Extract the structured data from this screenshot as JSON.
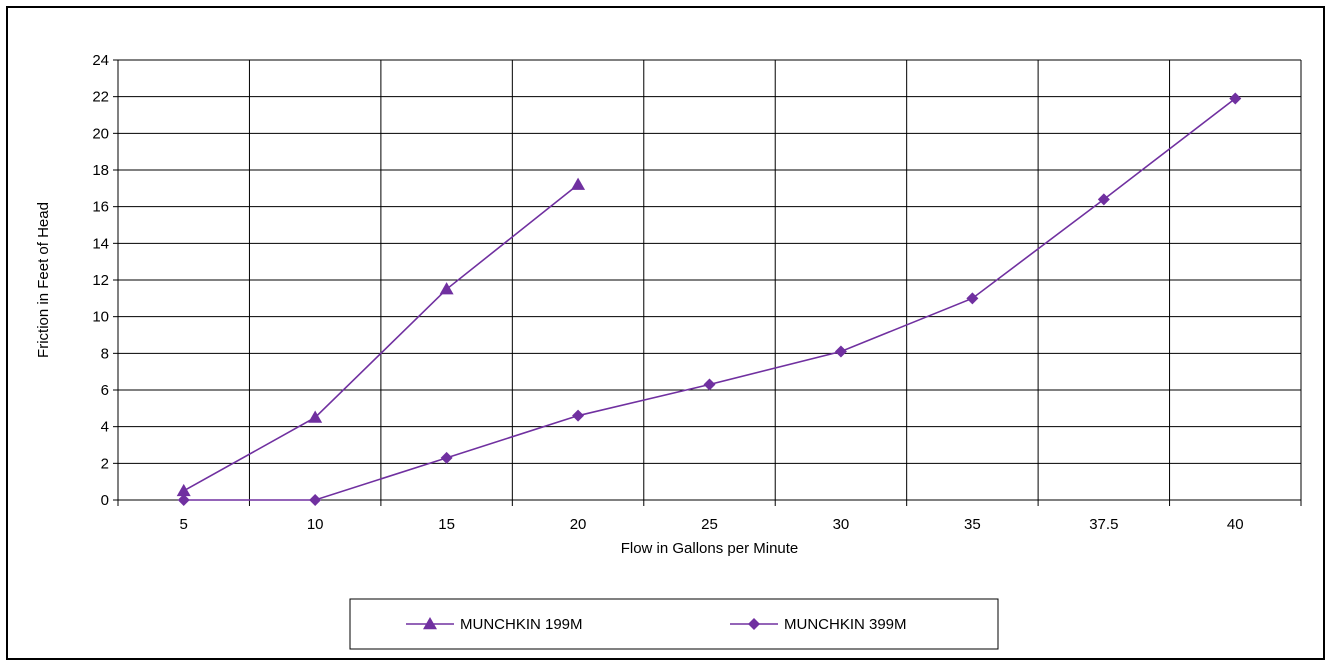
{
  "chart_data": {
    "type": "line",
    "title": "",
    "xlabel": "Flow in Gallons per Minute",
    "ylabel": "Friction in Feet of Head",
    "categories": [
      "5",
      "10",
      "15",
      "20",
      "25",
      "30",
      "35",
      "37.5",
      "40"
    ],
    "ylim": [
      0,
      24
    ],
    "yticks": [
      0,
      2,
      4,
      6,
      8,
      10,
      12,
      14,
      16,
      18,
      20,
      22,
      24
    ],
    "grid": true,
    "legend_position": "bottom",
    "colors": {
      "series": "#7030A0",
      "axis": "#000000",
      "grid": "#000000"
    },
    "series": [
      {
        "name": "MUNCHKIN 199M",
        "marker": "triangle",
        "values": [
          0.5,
          4.5,
          11.5,
          17.2,
          null,
          null,
          null,
          null,
          null
        ]
      },
      {
        "name": "MUNCHKIN 399M",
        "marker": "diamond",
        "values": [
          0,
          0,
          2.3,
          4.6,
          6.3,
          8.1,
          11.0,
          16.4,
          21.9
        ]
      }
    ]
  }
}
